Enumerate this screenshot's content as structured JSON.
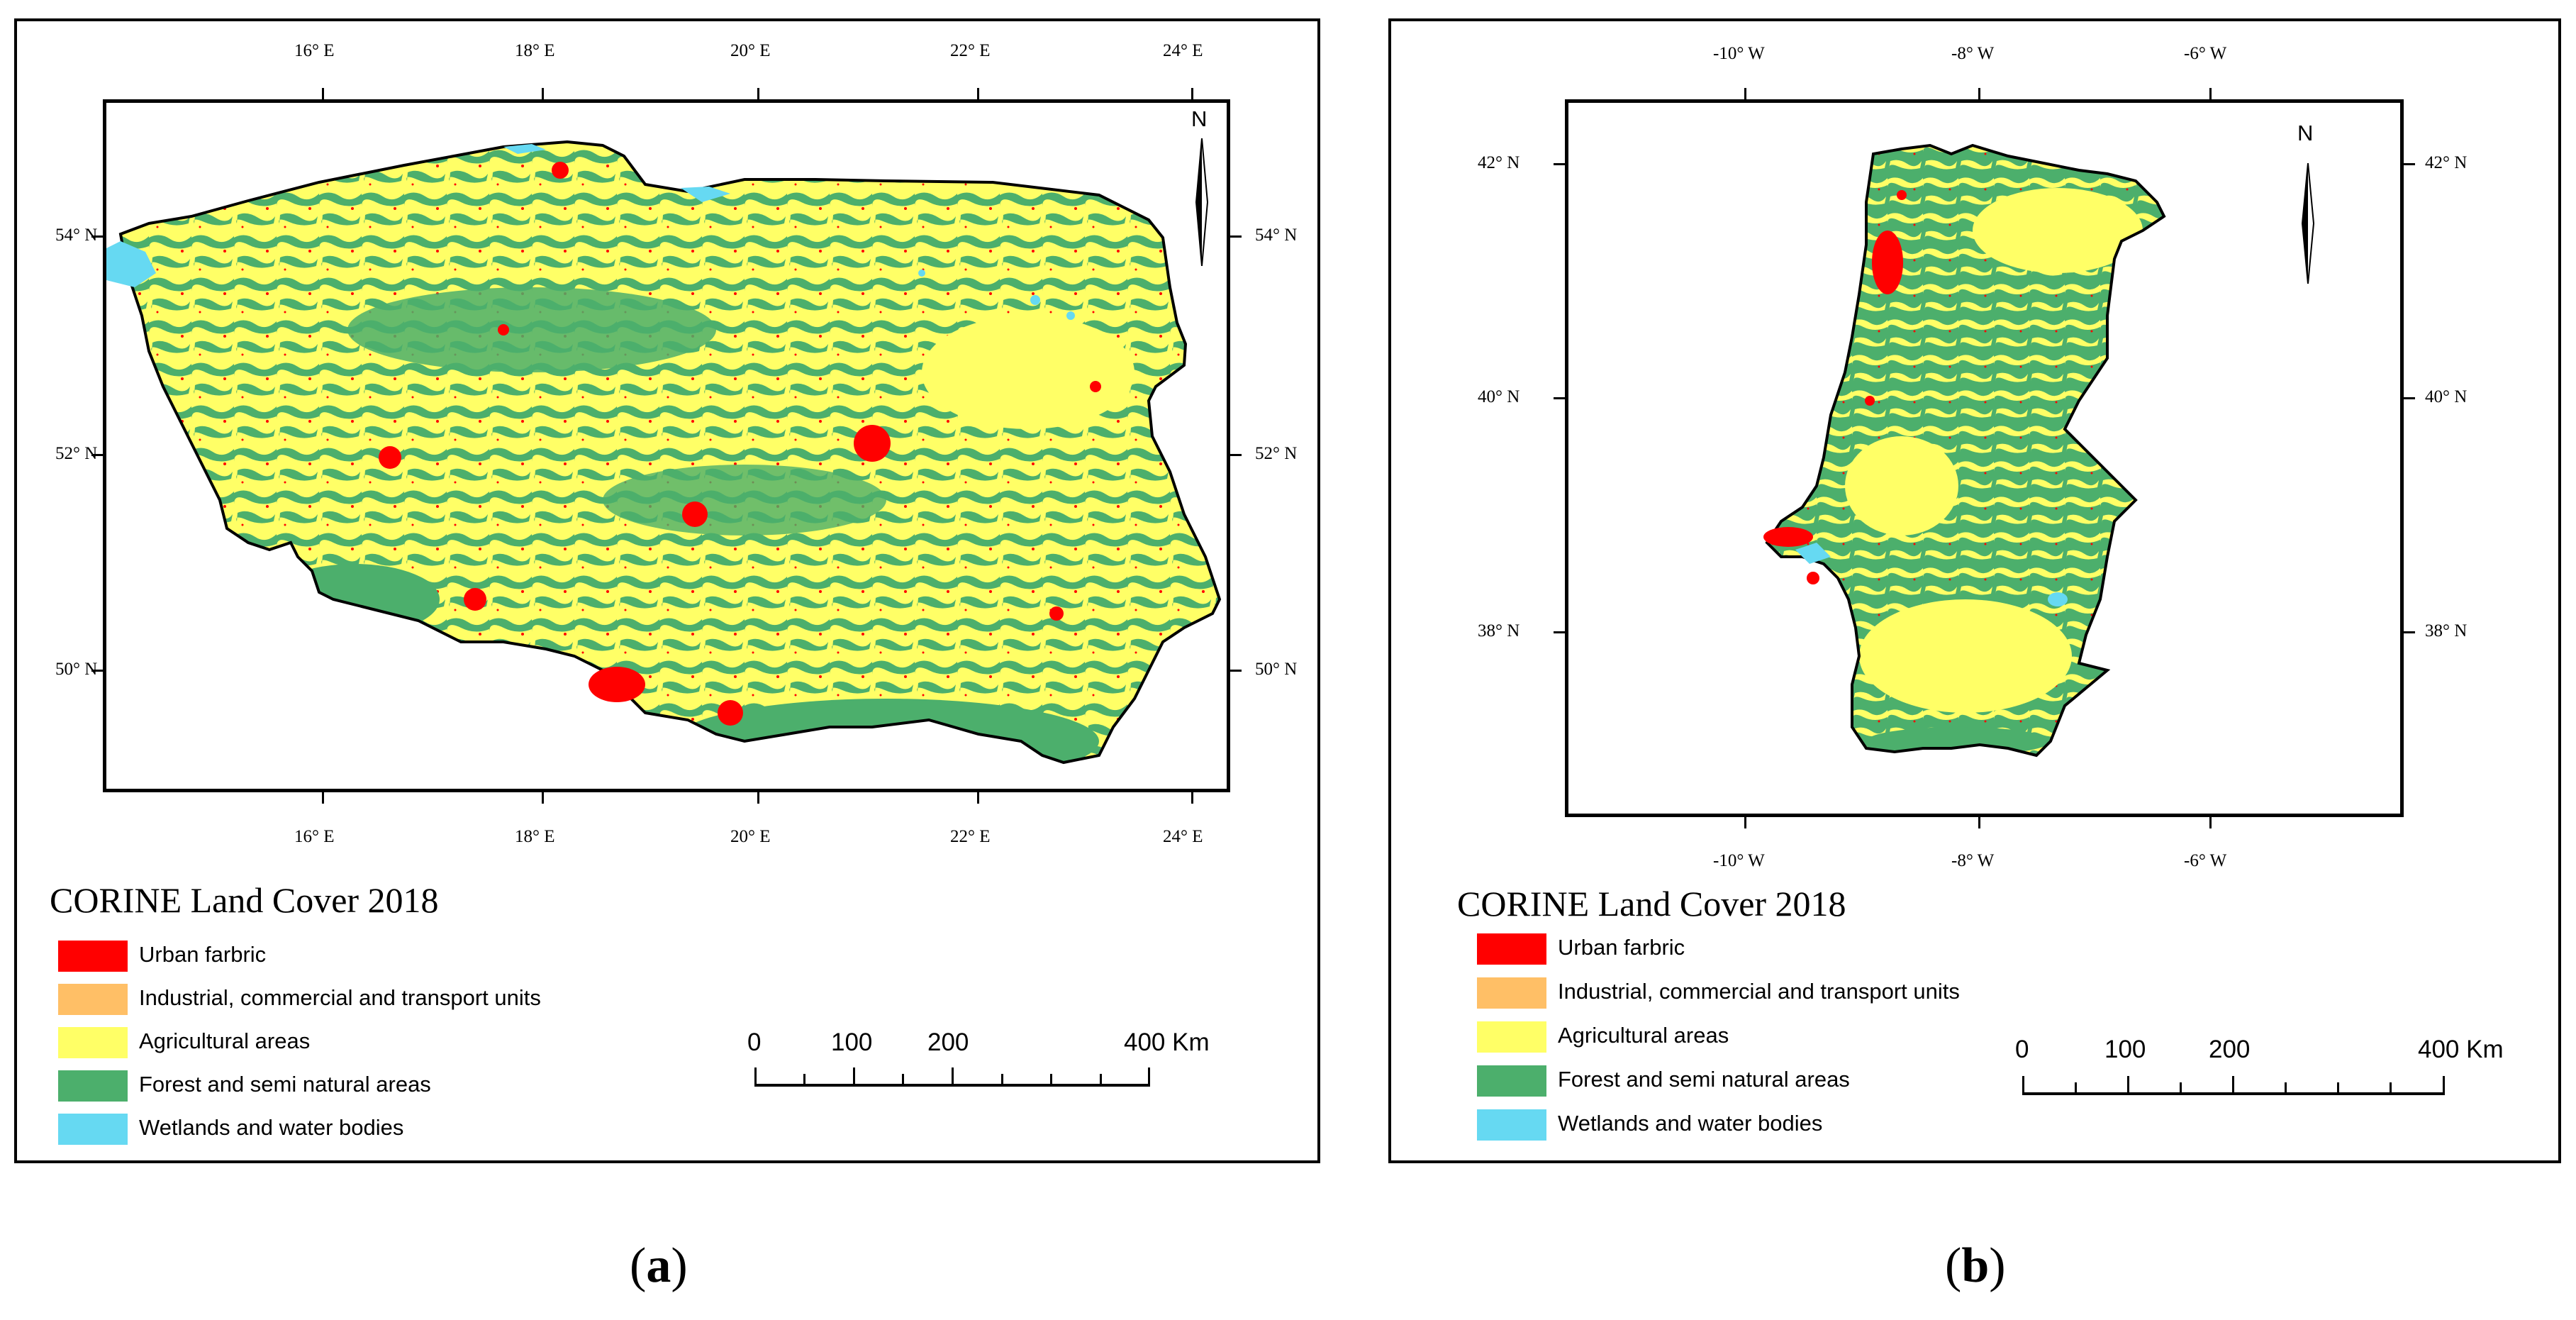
{
  "colors": {
    "urban": "#ff0000",
    "industrial": "#ffbf66",
    "agricultural": "#ffff66",
    "forest": "#4caf6c",
    "water": "#66d9f2",
    "outline": "#000000"
  },
  "panel_a": {
    "caption_open": "(",
    "caption_letter": "a",
    "caption_close": ")",
    "top_ticks": [
      "16° E",
      "18° E",
      "20° E",
      "22° E",
      "24° E"
    ],
    "bottom_ticks": [
      "16° E",
      "18° E",
      "20° E",
      "22° E",
      "24° E"
    ],
    "left_ticks": [
      "54° N",
      "52° N",
      "50° N"
    ],
    "right_ticks": [
      "54° N",
      "52° N",
      "50° N"
    ],
    "north": "N",
    "legend": {
      "title": "CORINE Land Cover 2018",
      "items": [
        {
          "label": "Urban farbric",
          "color_key": "urban"
        },
        {
          "label": "Industrial, commercial and transport units",
          "color_key": "industrial"
        },
        {
          "label": "Agricultural areas",
          "color_key": "agricultural"
        },
        {
          "label": "Forest and semi natural areas",
          "color_key": "forest"
        },
        {
          "label": "Wetlands and water bodies",
          "color_key": "water"
        }
      ]
    },
    "scale": {
      "labels": [
        "0",
        "100",
        "200",
        "400 Km"
      ]
    }
  },
  "panel_b": {
    "caption_open": "(",
    "caption_letter": "b",
    "caption_close": ")",
    "top_ticks": [
      "-10° W",
      "-8° W",
      "-6° W"
    ],
    "bottom_ticks": [
      "-10° W",
      "-8° W",
      "-6° W"
    ],
    "left_ticks": [
      "42° N",
      "40° N",
      "38° N"
    ],
    "right_ticks": [
      "42° N",
      "40° N",
      "38° N"
    ],
    "north": "N",
    "legend": {
      "title": "CORINE Land Cover 2018",
      "items": [
        {
          "label": "Urban farbric",
          "color_key": "urban"
        },
        {
          "label": "Industrial, commercial and transport units",
          "color_key": "industrial"
        },
        {
          "label": "Agricultural areas",
          "color_key": "agricultural"
        },
        {
          "label": "Forest and semi natural areas",
          "color_key": "forest"
        },
        {
          "label": "Wetlands and water bodies",
          "color_key": "water"
        }
      ]
    },
    "scale": {
      "labels": [
        "0",
        "100",
        "200",
        "400 Km"
      ]
    }
  }
}
